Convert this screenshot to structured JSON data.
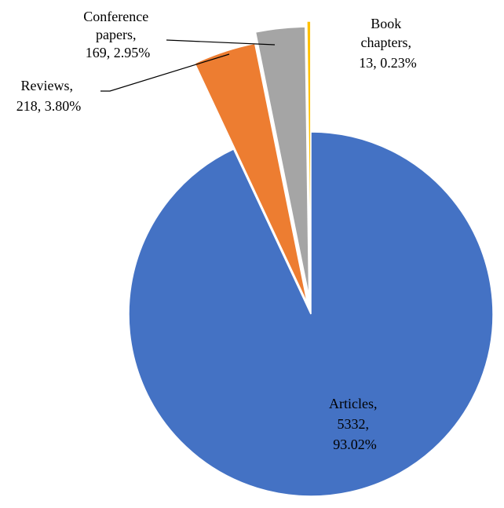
{
  "chart_data": {
    "type": "pie",
    "exploded": true,
    "slices": [
      {
        "key": "articles",
        "label_lines": [
          "Articles,",
          "5332,",
          "93.02%"
        ],
        "value": 5332,
        "percent": 93.02,
        "color": "#4472C4"
      },
      {
        "key": "reviews",
        "label_lines": [
          "Reviews,",
          "218, 3.80%"
        ],
        "value": 218,
        "percent": 3.8,
        "color": "#ED7D31"
      },
      {
        "key": "conference",
        "label_lines": [
          "Conference",
          "papers,",
          "169, 2.95%"
        ],
        "value": 169,
        "percent": 2.95,
        "color": "#A5A5A5"
      },
      {
        "key": "book",
        "label_lines": [
          "Book",
          "chapters,",
          "13, 0.23%"
        ],
        "value": 13,
        "percent": 0.23,
        "color": "#FFC000"
      }
    ]
  }
}
